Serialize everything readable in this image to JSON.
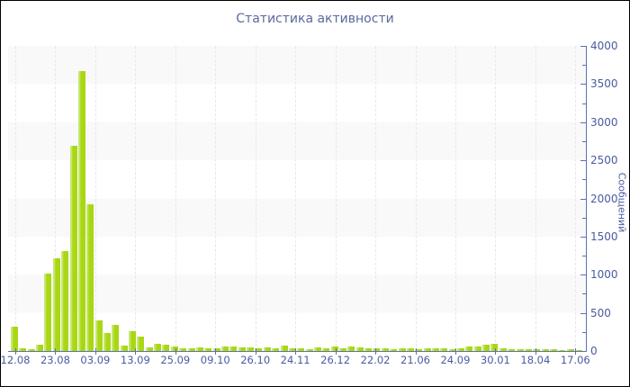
{
  "title": "Статистика активности",
  "colors": {
    "background": "#ffffff",
    "border": "#000000",
    "title_text": "#5a6a9c",
    "tick_text": "#4a5b9f",
    "axis": "#5b71b3",
    "bar_main": "#a9d714",
    "bar_highlight": "#c9e775",
    "band": "#f9f9f9",
    "gridline": "#e7e7e7"
  },
  "chart_data": {
    "type": "bar",
    "title": "Статистика активности",
    "xlabel": "",
    "ylabel": "Сообщений",
    "ylim": [
      0,
      4000
    ],
    "y_tick_labels": [
      "4000",
      "3500",
      "3000",
      "2500",
      "2000",
      "1500",
      "1000",
      "500",
      "0"
    ],
    "x_tick_labels": [
      "12.08",
      "23.08",
      "03.09",
      "13.09",
      "25.09",
      "09.10",
      "26.10",
      "24.11",
      "26.12",
      "22.02",
      "21.06",
      "24.09",
      "30.01",
      "18.04",
      "17.06"
    ],
    "values": [
      320,
      40,
      20,
      85,
      1010,
      1220,
      1310,
      2690,
      3670,
      1920,
      400,
      240,
      340,
      70,
      260,
      190,
      50,
      95,
      85,
      60,
      30,
      40,
      45,
      30,
      40,
      55,
      65,
      50,
      45,
      30,
      45,
      35,
      70,
      40,
      30,
      25,
      45,
      35,
      55,
      35,
      60,
      45,
      35,
      40,
      30,
      25,
      35,
      30,
      25,
      40,
      35,
      30,
      25,
      35,
      55,
      65,
      85,
      95,
      30,
      20,
      20,
      25,
      20,
      25,
      20,
      15,
      20,
      10
    ],
    "legend": "none",
    "grid": "alternating horizontal bands per 500 units, dashed vertical gridlines at date ticks",
    "y_axis_position": "right"
  }
}
